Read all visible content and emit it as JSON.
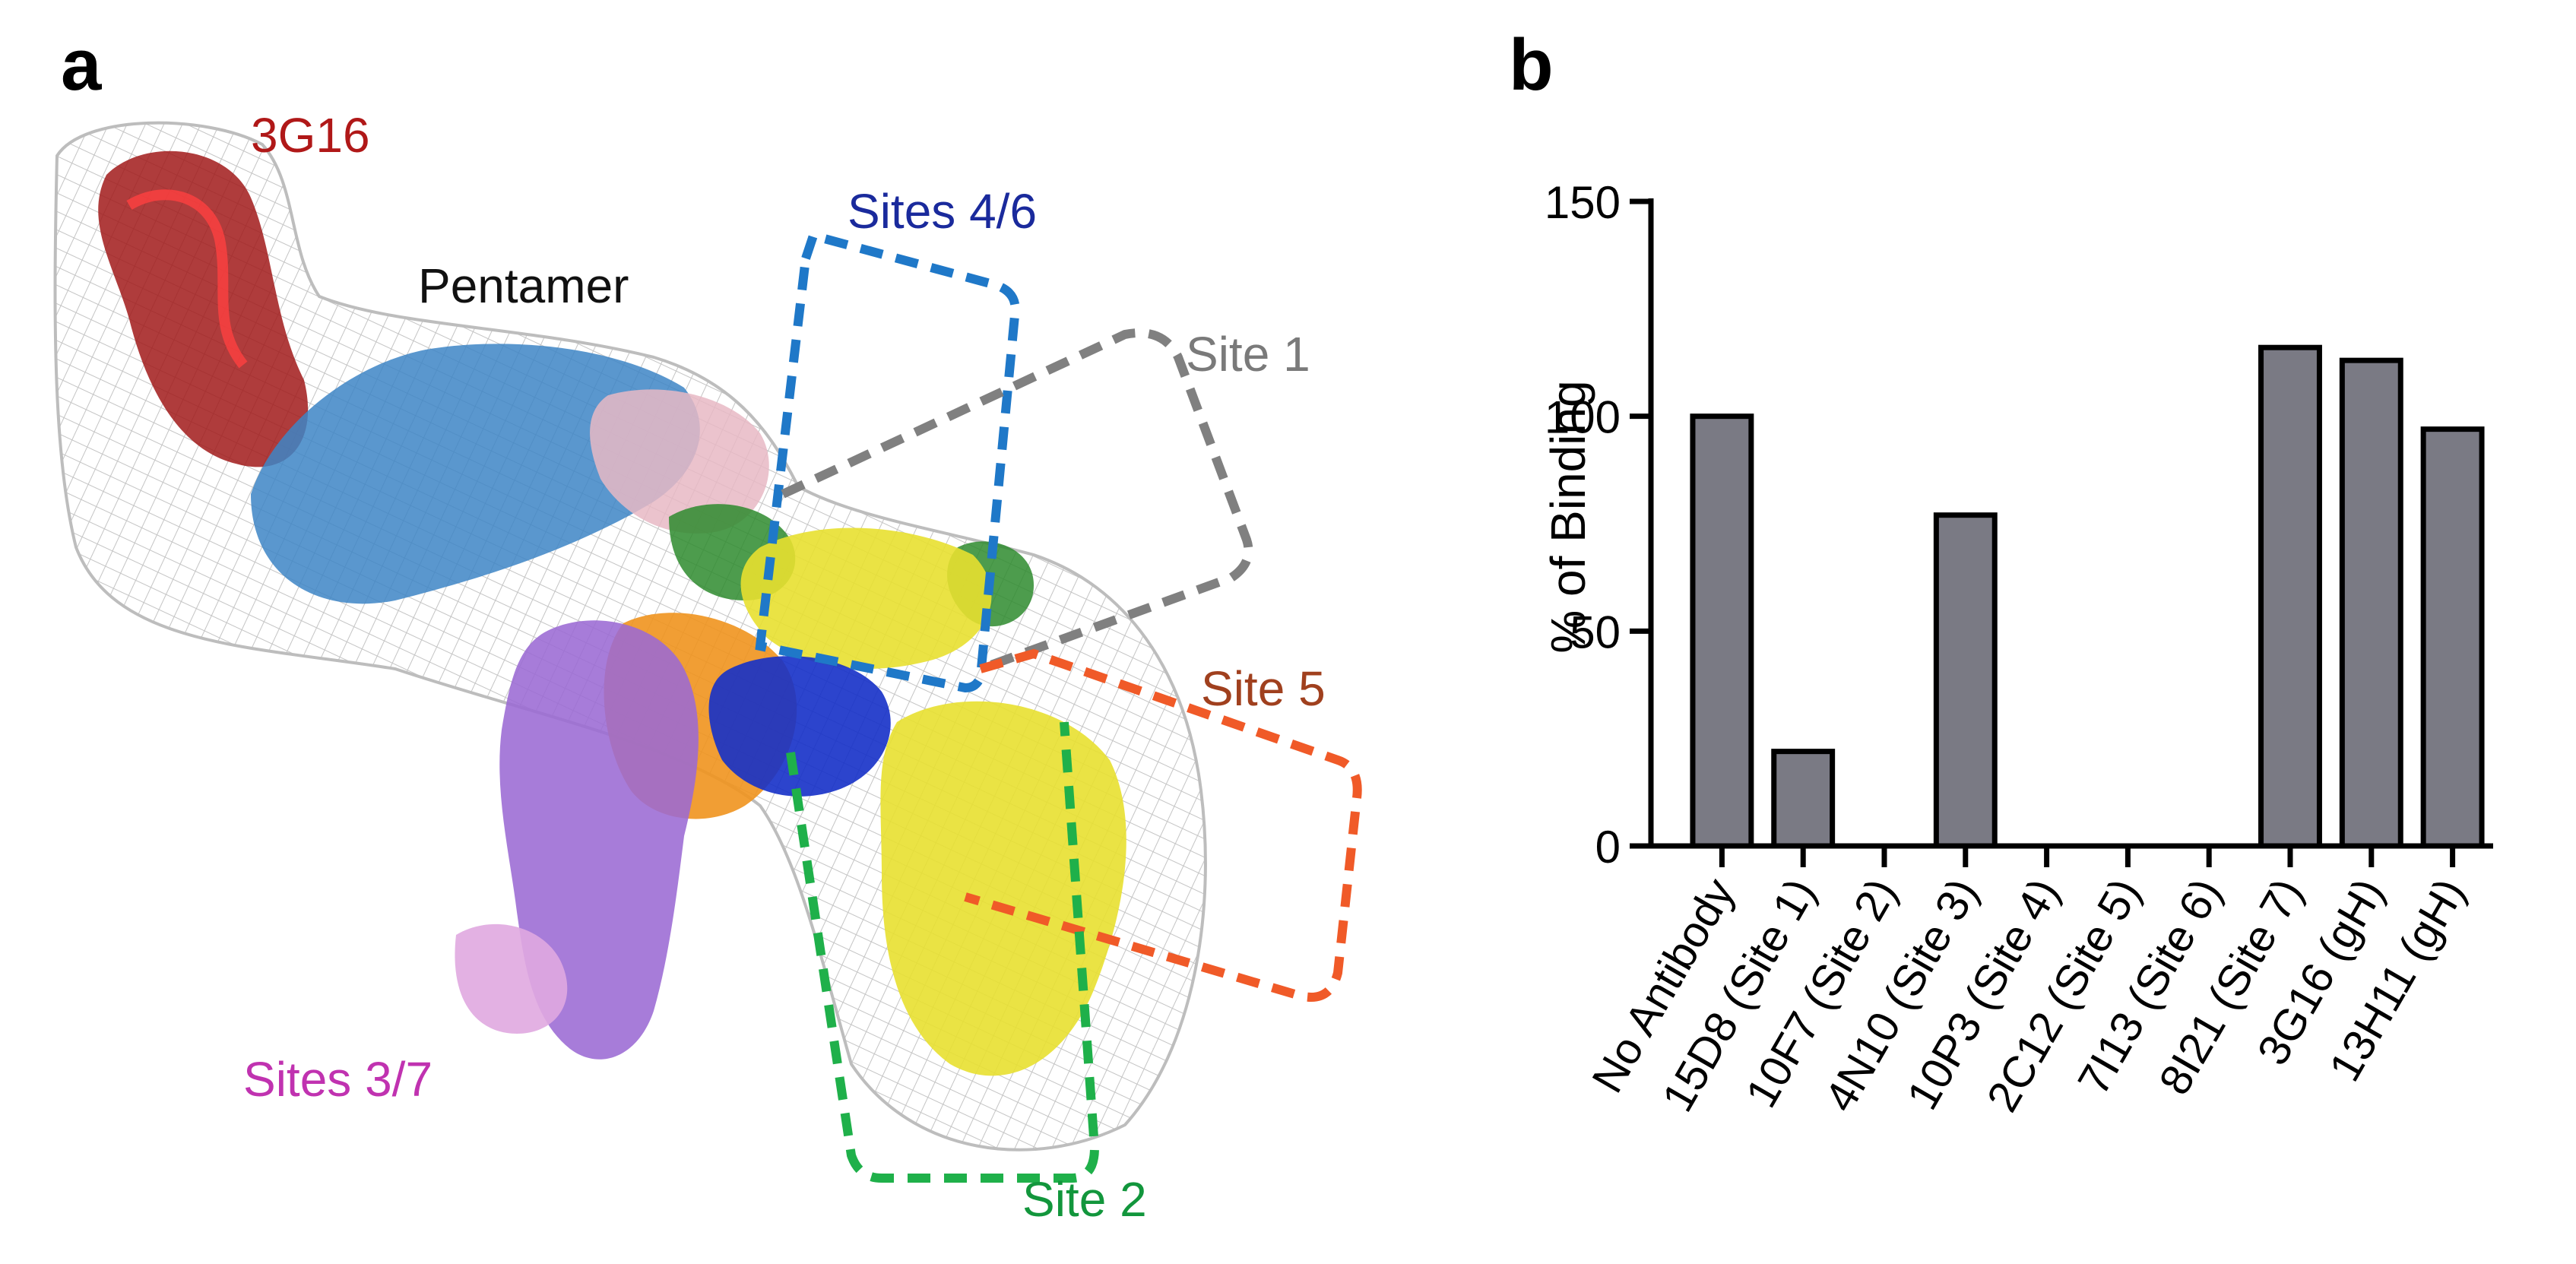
{
  "panel_a": {
    "panel_letter": "a",
    "labels": {
      "antibody": "3G16",
      "complex": "Pentamer",
      "sites_4_6": "Sites 4/6",
      "site_1": "Site 1",
      "site_5": "Site 5",
      "sites_3_7": "Sites 3/7",
      "site_2": "Site 2"
    },
    "colors": {
      "antibody": "#b01818",
      "complex": "#111111",
      "sites_4_6": "#1a2a9c",
      "site_1": "#7a7a7a",
      "site_5": "#a0401e",
      "sites_3_7": "#c032b0",
      "site_2": "#12963c",
      "box_sites_4_6": "#1f78c8",
      "box_site_1": "#808080",
      "box_site_5": "#f05a28",
      "box_site_2": "#1fb04a"
    }
  },
  "chart_data": {
    "type": "bar",
    "panel_letter": "b",
    "categories": [
      "No Antibody",
      "15D8 (Site 1)",
      "10F7 (Site 2)",
      "4N10 (Site 3)",
      "10P3 (Site 4)",
      "2C12 (Site 5)",
      "7I13 (Site 6)",
      "8I21 (Site 7)",
      "3G16 (gH)",
      "13H11 (gH)"
    ],
    "values": [
      100,
      22,
      0,
      77,
      0,
      0,
      0,
      116,
      113,
      97
    ],
    "ylabel": "% of Binding",
    "xlabel": "",
    "ylim": [
      0,
      150
    ],
    "yticks": [
      0,
      50,
      100,
      150
    ],
    "bar_color": "#7a7a84",
    "grid": false
  }
}
